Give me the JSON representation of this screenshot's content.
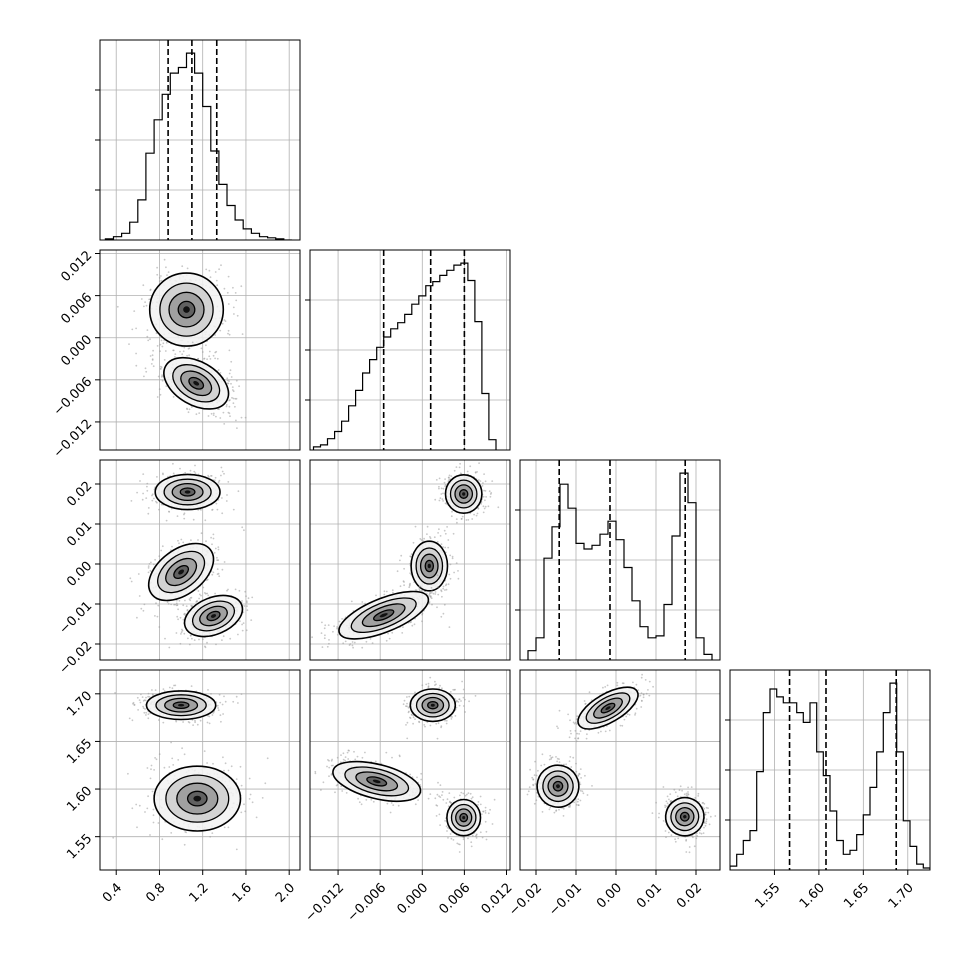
{
  "figure": {
    "type": "corner-plot",
    "grid": true,
    "quantiles": [
      0.16,
      0.5,
      0.84
    ]
  },
  "chart_data": [
    {
      "type": "histogram",
      "panel": "0-0",
      "param": 0,
      "xlim": [
        0.25,
        2.1
      ],
      "bins": [
        0.3,
        0.375,
        0.45,
        0.525,
        0.6,
        0.675,
        0.75,
        0.825,
        0.9,
        0.975,
        1.05,
        1.125,
        1.2,
        1.275,
        1.35,
        1.425,
        1.5,
        1.575,
        1.65,
        1.725,
        1.8,
        1.875,
        1.95,
        2.025
      ],
      "counts": [
        1,
        3,
        6,
        16,
        36,
        78,
        108,
        131,
        150,
        155,
        168,
        150,
        120,
        80,
        50,
        31,
        18,
        10,
        6,
        3,
        2,
        1,
        0
      ],
      "quantile_lines": [
        0.88,
        1.1,
        1.33
      ]
    },
    {
      "type": "histogram",
      "panel": "1-1",
      "param": 1,
      "xlim": [
        -0.016,
        0.0125
      ],
      "bins": [
        -0.0155,
        -0.0145,
        -0.0135,
        -0.0125,
        -0.0115,
        -0.0105,
        -0.0095,
        -0.0085,
        -0.0075,
        -0.0065,
        -0.0055,
        -0.0045,
        -0.0035,
        -0.0025,
        -0.0015,
        -0.0005,
        0.0005,
        0.0015,
        0.0025,
        0.0035,
        0.0045,
        0.0055,
        0.0065,
        0.0075,
        0.0085,
        0.0095,
        0.0105
      ],
      "counts": [
        3,
        5,
        11,
        18,
        28,
        43,
        58,
        75,
        88,
        100,
        110,
        118,
        124,
        132,
        142,
        150,
        160,
        164,
        170,
        175,
        180,
        182,
        165,
        125,
        55,
        10
      ],
      "quantile_lines": [
        -0.0055,
        0.0012,
        0.006
      ]
    },
    {
      "type": "histogram",
      "panel": "2-2",
      "param": 2,
      "xlim": [
        -0.024,
        0.026
      ],
      "bins": [
        -0.022,
        -0.02,
        -0.018,
        -0.016,
        -0.014,
        -0.012,
        -0.01,
        -0.008,
        -0.006,
        -0.004,
        -0.002,
        0.0,
        0.002,
        0.004,
        0.006,
        0.008,
        0.01,
        0.012,
        0.014,
        0.016,
        0.018,
        0.02,
        0.022,
        0.024
      ],
      "counts": [
        0.05,
        0.12,
        0.55,
        0.72,
        0.95,
        0.82,
        0.63,
        0.6,
        0.62,
        0.68,
        0.75,
        0.65,
        0.5,
        0.32,
        0.18,
        0.12,
        0.13,
        0.3,
        0.67,
        1.01,
        0.85,
        0.12,
        0.03
      ],
      "quantile_lines": [
        -0.0142,
        -0.0015,
        0.0173
      ]
    },
    {
      "type": "histogram",
      "panel": "3-3",
      "param": 3,
      "xlim": [
        1.5,
        1.725
      ],
      "bins": [
        1.5,
        1.5075,
        1.515,
        1.5225,
        1.53,
        1.5375,
        1.545,
        1.5525,
        1.56,
        1.5675,
        1.575,
        1.5825,
        1.59,
        1.5975,
        1.605,
        1.6125,
        1.62,
        1.6275,
        1.635,
        1.6425,
        1.65,
        1.6575,
        1.665,
        1.6725,
        1.68,
        1.6875,
        1.695,
        1.7025,
        1.71,
        1.7175,
        1.725
      ],
      "counts": [
        0.02,
        0.08,
        0.15,
        0.2,
        0.5,
        0.8,
        0.92,
        0.88,
        0.85,
        0.85,
        0.8,
        0.75,
        0.85,
        0.6,
        0.48,
        0.3,
        0.15,
        0.08,
        0.1,
        0.18,
        0.28,
        0.42,
        0.6,
        0.8,
        0.95,
        0.6,
        0.25,
        0.12,
        0.03,
        0.01
      ],
      "quantile_lines": [
        1.567,
        1.608,
        1.687
      ]
    },
    {
      "type": "scatter-density",
      "panel": "1-0",
      "x_param": 0,
      "y_param": 1,
      "xlim": [
        0.25,
        2.1
      ],
      "ylim": [
        -0.016,
        0.0125
      ],
      "modes": [
        {
          "cx": 1.05,
          "cy": 0.004,
          "sx": 0.17,
          "sy": 0.0026
        },
        {
          "cx": 1.14,
          "cy": -0.0065,
          "sx": 0.1,
          "sy": 0.0025,
          "angle": -60
        }
      ]
    },
    {
      "type": "scatter-density",
      "panel": "2-0",
      "x_param": 0,
      "y_param": 2,
      "xlim": [
        0.25,
        2.1
      ],
      "ylim": [
        -0.024,
        0.026
      ],
      "modes": [
        {
          "cx": 1.06,
          "cy": 0.018,
          "sx": 0.15,
          "sy": 0.0022
        },
        {
          "cx": 1.0,
          "cy": -0.002,
          "sx": 0.17,
          "sy": 0.0028,
          "angle": -37
        },
        {
          "cx": 1.3,
          "cy": -0.013,
          "sx": 0.14,
          "sy": 0.0023,
          "angle": -22
        }
      ]
    },
    {
      "type": "scatter-density",
      "panel": "2-1",
      "x_param": 1,
      "y_param": 2,
      "xlim": [
        -0.016,
        0.0125
      ],
      "ylim": [
        -0.024,
        0.026
      ],
      "modes": [
        {
          "cx": 0.0059,
          "cy": 0.0175,
          "sx": 0.0013,
          "sy": 0.0024
        },
        {
          "cx": 0.001,
          "cy": -0.0005,
          "sx": 0.0013,
          "sy": 0.0031
        },
        {
          "cx": -0.0055,
          "cy": -0.0128,
          "sx": 0.0034,
          "sy": 0.0021,
          "angle": -22
        }
      ]
    },
    {
      "type": "scatter-density",
      "panel": "3-0",
      "x_param": 0,
      "y_param": 3,
      "xlim": [
        0.25,
        2.1
      ],
      "ylim": [
        1.515,
        1.725
      ],
      "modes": [
        {
          "cx": 1.0,
          "cy": 1.688,
          "sx": 0.16,
          "sy": 0.0075
        },
        {
          "cx": 1.15,
          "cy": 1.59,
          "sx": 0.2,
          "sy": 0.017
        }
      ]
    },
    {
      "type": "scatter-density",
      "panel": "3-1",
      "x_param": 1,
      "y_param": 3,
      "xlim": [
        -0.016,
        0.0125
      ],
      "ylim": [
        1.515,
        1.725
      ],
      "modes": [
        {
          "cx": 0.0015,
          "cy": 1.688,
          "sx": 0.0016,
          "sy": 0.0085
        },
        {
          "cx": -0.0065,
          "cy": 1.608,
          "sx": 0.0032,
          "sy": 0.009,
          "angle": 14
        },
        {
          "cx": 0.0059,
          "cy": 1.57,
          "sx": 0.0012,
          "sy": 0.0095
        }
      ]
    },
    {
      "type": "scatter-density",
      "panel": "3-2",
      "x_param": 2,
      "y_param": 3,
      "xlim": [
        -0.024,
        0.026
      ],
      "ylim": [
        1.515,
        1.725
      ],
      "modes": [
        {
          "cx": -0.002,
          "cy": 1.685,
          "sx": 0.0042,
          "sy": 0.0075,
          "angle": -30
        },
        {
          "cx": -0.0145,
          "cy": 1.603,
          "sx": 0.0026,
          "sy": 0.011,
          "angle": -30
        },
        {
          "cx": 0.0172,
          "cy": 1.571,
          "sx": 0.0024,
          "sy": 0.01,
          "angle": -30
        }
      ]
    }
  ],
  "axes": {
    "x_ticks": [
      [
        "0.4",
        "0.8",
        "1.2",
        "1.6",
        "2.0"
      ],
      [
        "−0.012",
        "−0.006",
        "0.000",
        "0.006",
        "0.012"
      ],
      [
        "−0.02",
        "−0.01",
        "0.00",
        "0.01",
        "0.02"
      ],
      [
        "1.55",
        "1.60",
        "1.65",
        "1.70"
      ]
    ],
    "x_tick_values": [
      [
        0.4,
        0.8,
        1.2,
        1.6,
        2.0
      ],
      [
        -0.012,
        -0.006,
        0.0,
        0.006,
        0.012
      ],
      [
        -0.02,
        -0.01,
        0.0,
        0.01,
        0.02
      ],
      [
        1.55,
        1.6,
        1.65,
        1.7
      ]
    ],
    "y_ticks": [
      null,
      [
        "0.012",
        "0.006",
        "0.000",
        "−0.006",
        "−0.012"
      ],
      [
        "0.02",
        "0.01",
        "0.00",
        "−0.01",
        "−0.02"
      ],
      [
        "1.70",
        "1.65",
        "1.60",
        "1.55"
      ]
    ],
    "y_tick_values": [
      null,
      [
        0.012,
        0.006,
        0.0,
        -0.006,
        -0.012
      ],
      [
        0.02,
        0.01,
        0.0,
        -0.01,
        -0.02
      ],
      [
        1.7,
        1.65,
        1.6,
        1.55
      ]
    ]
  }
}
